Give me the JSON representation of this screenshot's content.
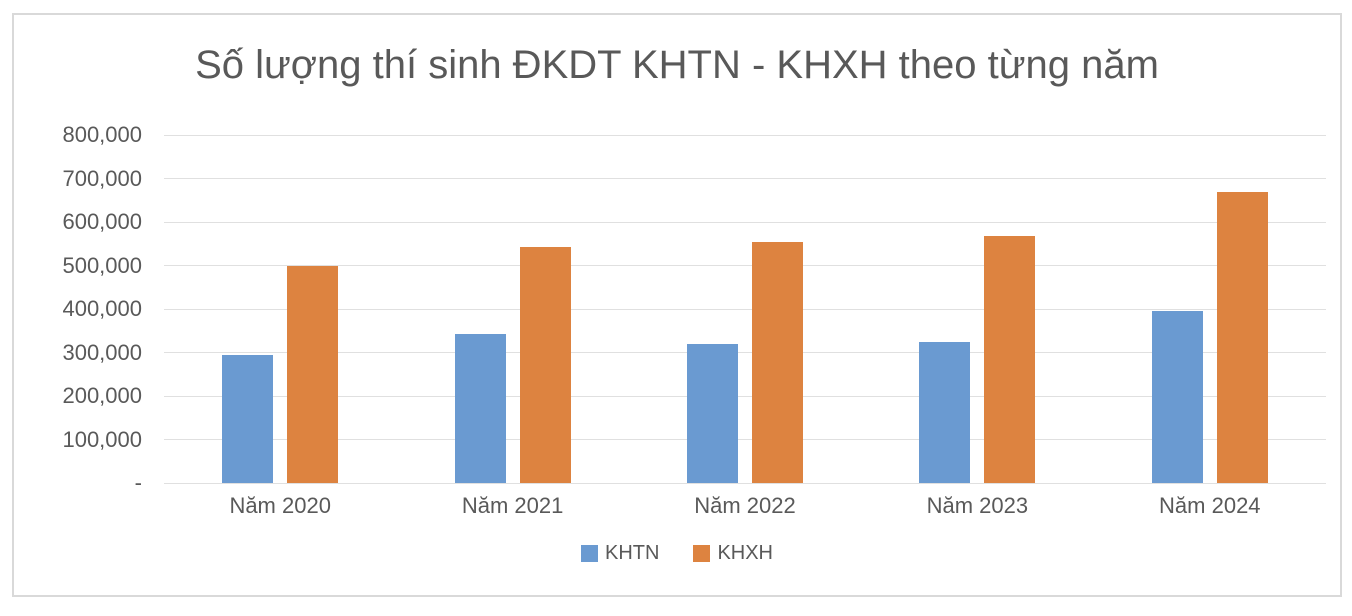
{
  "chart_data": {
    "type": "bar",
    "title": "Số lượng thí sinh ĐKDT KHTN - KHXH theo từng năm",
    "categories": [
      "Năm 2020",
      "Năm 2021",
      "Năm 2022",
      "Năm 2023",
      "Năm 2024"
    ],
    "series": [
      {
        "name": "KHTN",
        "color": "#6A9AD1",
        "values": [
          295000,
          343000,
          320000,
          323000,
          395000
        ]
      },
      {
        "name": "KHXH",
        "color": "#DD8340",
        "values": [
          498000,
          542000,
          555000,
          567000,
          670000
        ]
      }
    ],
    "xlabel": "",
    "ylabel": "",
    "ylim": [
      0,
      800000
    ],
    "ytick_step": 100000,
    "ytick_labels_bottom_to_top": [
      "-",
      "100,000",
      "200,000",
      "300,000",
      "400,000",
      "500,000",
      "600,000",
      "700,000",
      "800,000"
    ],
    "grid": true,
    "legend_position": "bottom",
    "text_color": "#595959",
    "gridline_color": "#E0E0E0",
    "frame_border_color": "#D9D9D9"
  }
}
